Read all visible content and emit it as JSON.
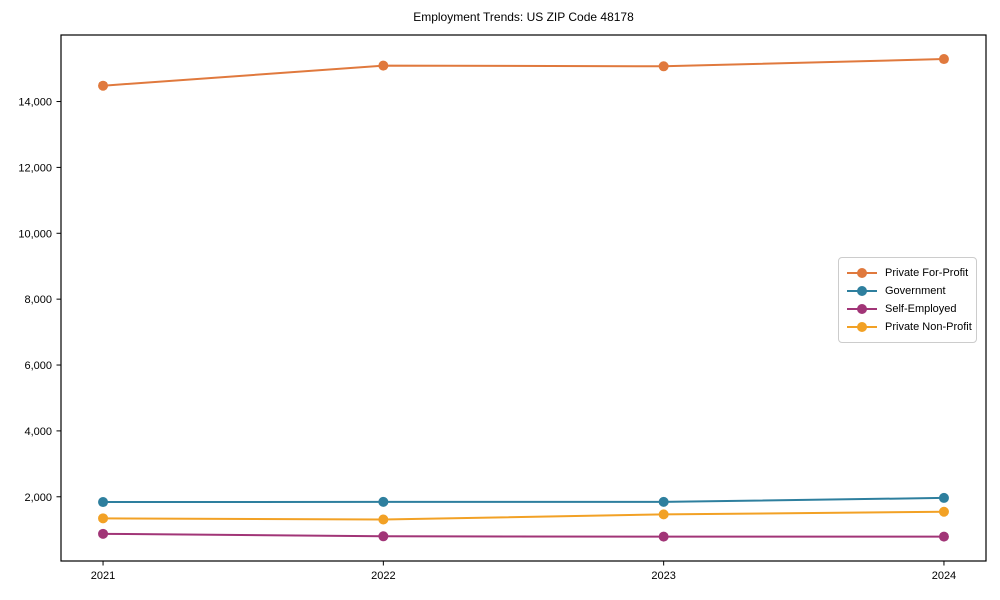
{
  "title": "Employment Trends: US ZIP Code 48178",
  "chart_data": {
    "type": "line",
    "title": "Employment Trends: US ZIP Code 48178",
    "xlabel": "",
    "ylabel": "",
    "x": [
      2021,
      2022,
      2023,
      2024
    ],
    "x_tick_labels": [
      "2021",
      "2022",
      "2023",
      "2024"
    ],
    "y_ticks": [
      2000,
      4000,
      6000,
      8000,
      10000,
      12000,
      14000
    ],
    "y_tick_labels": [
      "2,000",
      "4,000",
      "6,000",
      "8,000",
      "10,000",
      "12,000",
      "14,000"
    ],
    "xlim": [
      2020.85,
      2024.15
    ],
    "ylim": [
      50,
      16020
    ],
    "grid": false,
    "legend_position": "center-right",
    "series": [
      {
        "name": "Private For-Profit",
        "color": "#E0793D",
        "values": [
          14480,
          15090,
          15070,
          15290
        ]
      },
      {
        "name": "Government",
        "color": "#2E7F9E",
        "values": [
          1840,
          1845,
          1845,
          1965
        ]
      },
      {
        "name": "Self-Employed",
        "color": "#A13577",
        "values": [
          875,
          800,
          790,
          790
        ]
      },
      {
        "name": "Private Non-Profit",
        "color": "#F2A125",
        "values": [
          1345,
          1310,
          1465,
          1545
        ]
      }
    ]
  }
}
